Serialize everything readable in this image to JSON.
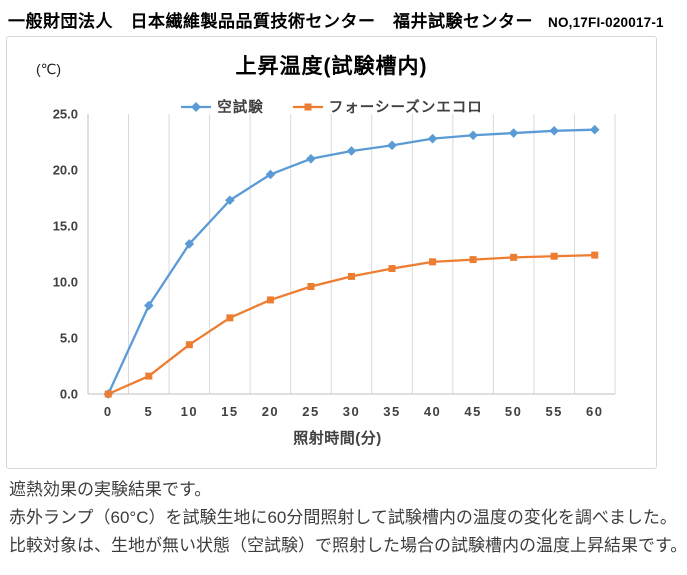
{
  "header": {
    "organization": "一般財団法人　日本繊維製品品質技術センター　福井試験センター",
    "report_no": "NO,17FI-020017-1"
  },
  "chart": {
    "title": "上昇温度(試験槽内)",
    "y_unit": "(℃)"
  },
  "chart_data": {
    "type": "line",
    "title": "上昇温度(試験槽内)",
    "xlabel": "照射時間(分)",
    "ylabel": "(℃)",
    "x": [
      0,
      5,
      10,
      15,
      20,
      25,
      30,
      35,
      40,
      45,
      50,
      55,
      60
    ],
    "series": [
      {
        "name": "空試験",
        "color": "#5B9BD5",
        "marker": "diamond",
        "values": [
          0.0,
          7.9,
          13.4,
          17.3,
          19.6,
          21.0,
          21.7,
          22.2,
          22.8,
          23.1,
          23.3,
          23.5,
          23.6
        ]
      },
      {
        "name": "フォーシーズンエコロ",
        "color": "#ED7D31",
        "marker": "square",
        "values": [
          0.0,
          1.6,
          4.4,
          6.8,
          8.4,
          9.6,
          10.5,
          11.2,
          11.8,
          12.0,
          12.2,
          12.3,
          12.4
        ]
      }
    ],
    "ylim": [
      0,
      25
    ],
    "ytick_step": 5,
    "ytick_labels": [
      "0.0",
      "5.0",
      "10.0",
      "15.0",
      "20.0",
      "25.0"
    ],
    "grid": "vertical-only",
    "legend_position": "top-center"
  },
  "colors": {
    "gridline": "#d9d9d9",
    "axis_line": "#bfbfbf",
    "axis_text": "#404040",
    "frame_border": "#d7d7d7"
  },
  "description": {
    "lines": [
      "遮熱効果の実験結果です。",
      "赤外ランプ（60°C）を試験生地に60分間照射して試験槽内の温度の変化を調べました。",
      "比較対象は、生地が無い状態（空試験）で照射した場合の試験槽内の温度上昇結果です。"
    ]
  }
}
